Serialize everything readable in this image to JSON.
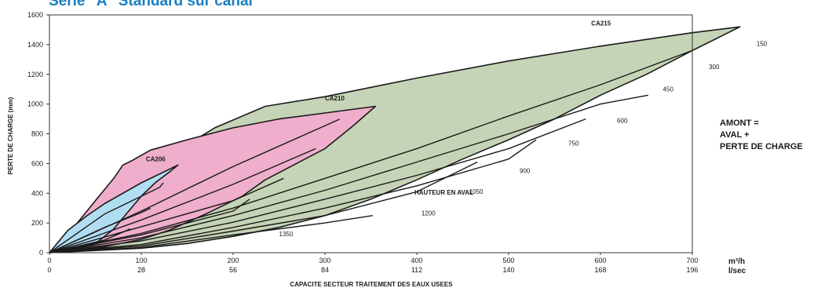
{
  "title": "Serie \"A\" Standard sur canal",
  "chart_data": {
    "type": "area",
    "xlabel": "CAPACITE SECTEUR TRAITEMENT DES EAUX USEES",
    "ylabel": "PERTE DE CHARGE (mm)",
    "x_unit": "m³/h",
    "x2_unit": "l/sec",
    "xlim": [
      0,
      700
    ],
    "ylim": [
      0,
      1600
    ],
    "x_ticks": [
      0,
      100,
      200,
      300,
      400,
      500,
      600,
      700
    ],
    "x2_ticks": [
      "0",
      "28",
      "56",
      "84",
      "112",
      "140",
      "168",
      "196"
    ],
    "y_ticks": [
      0,
      200,
      400,
      600,
      800,
      1000,
      1200,
      1400,
      1600
    ],
    "grid": false,
    "hauteur_label": "HAUTEUR EN AVAL",
    "amont_note": [
      "AMONT =",
      "AVAL +",
      "PERTE DE CHARGE"
    ],
    "regions": [
      {
        "name": "CA215",
        "color": "#c5d4b6",
        "boundary": [
          [
            0,
            0
          ],
          [
            50,
            15
          ],
          [
            100,
            30
          ],
          [
            150,
            62
          ],
          [
            200,
            110
          ],
          [
            250,
            170
          ],
          [
            300,
            250
          ],
          [
            350,
            360
          ],
          [
            400,
            490
          ],
          [
            450,
            630
          ],
          [
            500,
            760
          ],
          [
            550,
            900
          ],
          [
            600,
            1060
          ],
          [
            650,
            1200
          ],
          [
            700,
            1360
          ],
          [
            752,
            1520
          ],
          [
            700,
            1480
          ],
          [
            600,
            1390
          ],
          [
            500,
            1290
          ],
          [
            400,
            1175
          ],
          [
            300,
            1050
          ],
          [
            235,
            985
          ],
          [
            180,
            840
          ],
          [
            130,
            650
          ],
          [
            100,
            510
          ],
          [
            75,
            380
          ],
          [
            50,
            250
          ],
          [
            25,
            120
          ],
          [
            0,
            0
          ]
        ],
        "curves": [
          [
            [
              0,
              0
            ],
            [
              100,
              130
            ],
            [
              200,
              300
            ],
            [
              300,
              500
            ],
            [
              400,
              700
            ],
            [
              500,
              920
            ],
            [
              600,
              1130
            ],
            [
              700,
              1360
            ]
          ],
          [
            [
              0,
              0
            ],
            [
              100,
              100
            ],
            [
              200,
              250
            ],
            [
              300,
              420
            ],
            [
              400,
              610
            ],
            [
              500,
              800
            ],
            [
              600,
              1000
            ],
            [
              652,
              1060
            ]
          ],
          [
            [
              0,
              0
            ],
            [
              100,
              80
            ],
            [
              200,
              205
            ],
            [
              300,
              360
            ],
            [
              400,
              520
            ],
            [
              500,
              700
            ],
            [
              584,
              900
            ]
          ],
          [
            [
              0,
              0
            ],
            [
              100,
              55
            ],
            [
              200,
              170
            ],
            [
              300,
              300
            ],
            [
              400,
              450
            ],
            [
              500,
              630
            ],
            [
              530,
              760
            ]
          ],
          [
            [
              0,
              0
            ],
            [
              100,
              45
            ],
            [
              200,
              145
            ],
            [
              300,
              250
            ],
            [
              400,
              410
            ],
            [
              466,
              610
            ]
          ],
          [
            [
              0,
              0
            ],
            [
              100,
              35
            ],
            [
              200,
              120
            ],
            [
              300,
              200
            ],
            [
              352,
              250
            ]
          ]
        ],
        "line_labels": [
          {
            "text": "150",
            "x": 770,
            "y": 1392
          },
          {
            "text": "300",
            "x": 718,
            "y": 1235
          },
          {
            "text": "450",
            "x": 668,
            "y": 1085
          },
          {
            "text": "600",
            "x": 618,
            "y": 875
          },
          {
            "text": "750",
            "x": 565,
            "y": 720
          },
          {
            "text": "900",
            "x": 512,
            "y": 535
          },
          {
            "text": "1050",
            "x": 457,
            "y": 395
          },
          {
            "text": "1200",
            "x": 405,
            "y": 250
          },
          {
            "text": "1350",
            "x": 250,
            "y": 110
          }
        ]
      },
      {
        "name": "CA210",
        "color": "#efaecb",
        "boundary": [
          [
            0,
            0
          ],
          [
            30,
            18
          ],
          [
            60,
            40
          ],
          [
            100,
            90
          ],
          [
            130,
            150
          ],
          [
            170,
            260
          ],
          [
            210,
            380
          ],
          [
            235,
            490
          ],
          [
            300,
            700
          ],
          [
            330,
            850
          ],
          [
            355,
            985
          ],
          [
            300,
            940
          ],
          [
            250,
            900
          ],
          [
            200,
            840
          ],
          [
            150,
            760
          ],
          [
            110,
            690
          ],
          [
            90,
            620
          ],
          [
            80,
            590
          ],
          [
            70,
            500
          ],
          [
            50,
            350
          ],
          [
            25,
            160
          ],
          [
            0,
            0
          ]
        ],
        "curves": [
          [
            [
              0,
              0
            ],
            [
              100,
              280
            ],
            [
              200,
              580
            ],
            [
              316,
              898
            ]
          ],
          [
            [
              0,
              0
            ],
            [
              100,
              220
            ],
            [
              200,
              460
            ],
            [
              290,
              700
            ]
          ],
          [
            [
              0,
              0
            ],
            [
              100,
              175
            ],
            [
              200,
              350
            ],
            [
              255,
              500
            ]
          ],
          [
            [
              0,
              0
            ],
            [
              100,
              120
            ],
            [
              200,
              280
            ],
            [
              218,
              360
            ]
          ]
        ],
        "line_labels": []
      },
      {
        "name": "CA206",
        "color": "#b0ddf1",
        "boundary": [
          [
            0,
            0
          ],
          [
            20,
            150
          ],
          [
            40,
            245
          ],
          [
            60,
            330
          ],
          [
            100,
            470
          ],
          [
            140,
            590
          ],
          [
            130,
            540
          ],
          [
            115,
            470
          ],
          [
            100,
            380
          ],
          [
            85,
            270
          ],
          [
            70,
            160
          ],
          [
            50,
            60
          ],
          [
            25,
            15
          ],
          [
            0,
            0
          ]
        ],
        "curves": [
          [
            [
              0,
              0
            ],
            [
              60,
              260
            ],
            [
              120,
              440
            ],
            [
              124,
              470
            ]
          ],
          [
            [
              0,
              0
            ],
            [
              60,
              170
            ],
            [
              100,
              270
            ],
            [
              110,
              300
            ]
          ],
          [
            [
              0,
              0
            ],
            [
              60,
              85
            ],
            [
              88,
              160
            ]
          ]
        ],
        "line_labels": []
      }
    ],
    "region_labels": [
      {
        "text": "CA206",
        "x": 105,
        "y": 615
      },
      {
        "text": "CA210",
        "x": 300,
        "y": 1025
      },
      {
        "text": "CA215",
        "x": 590,
        "y": 1530
      }
    ]
  }
}
